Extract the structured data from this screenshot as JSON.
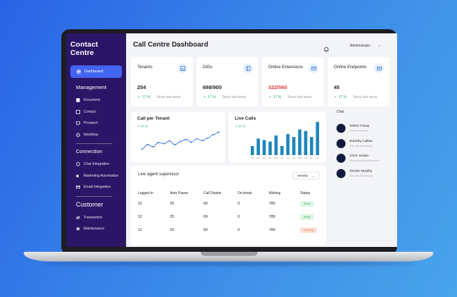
{
  "sidebar": {
    "brand": "Contact Centre",
    "dashboard": "Dashboard",
    "sections": {
      "management": "Management",
      "connection": "Connection",
      "customer": "Customer"
    },
    "management_items": [
      "Document",
      "Contact",
      "Prospect",
      "Workflow"
    ],
    "connection_items": [
      "Chat Integration",
      "Marketing Automation",
      "Email Integration"
    ],
    "customer_items": [
      "Transaction",
      "Maintenance"
    ]
  },
  "header": {
    "title": "Call Centre Dashboard",
    "user": "Administrator"
  },
  "cards": [
    {
      "title": "Tenants",
      "value": "254",
      "trend": "17 %",
      "since": "Since last week",
      "icon": "image-icon",
      "value_color": "#222222"
    },
    {
      "title": "DIDs",
      "value": "698/900",
      "trend": "17 %",
      "since": "Since last week",
      "icon": "book-icon",
      "value_color": "#222222"
    },
    {
      "title": "Online Extensions",
      "value": "322/560",
      "trend": "17 %",
      "since": "Since last week",
      "icon": "mail-icon",
      "value_color": "#e2383e"
    },
    {
      "title": "Online Endpoints",
      "value": "45",
      "trend": "17 %",
      "since": "Since last week",
      "icon": "mail-icon",
      "value_color": "#222222"
    }
  ],
  "charts": {
    "tenant": {
      "title": "Call per Tenant",
      "trend": "17 %"
    },
    "live": {
      "title": "Live Calls",
      "trend": "17 %"
    }
  },
  "chart_data": [
    {
      "type": "line",
      "title": "Call per Tenant",
      "values": [
        3,
        5,
        4,
        6,
        5.5,
        6.8,
        5,
        6.5,
        7.5,
        6.2,
        7.8,
        7,
        8.2,
        9.8,
        11
      ],
      "ylim": [
        0,
        12
      ]
    },
    {
      "type": "bar",
      "title": "Live Calls",
      "categories": [
        "Jan",
        "Feb",
        "Mar",
        "Apr",
        "May",
        "Jun",
        "Jul",
        "Aug",
        "Sep",
        "Oct",
        "Nov",
        "Dec"
      ],
      "values": [
        3,
        5.5,
        5,
        4.5,
        6.5,
        3,
        7,
        6,
        8.5,
        8,
        6,
        11
      ],
      "ylim": [
        0,
        12
      ]
    }
  ],
  "agent": {
    "title": "Live agent supervisor",
    "period": "Weekly",
    "columns": [
      "Logged in",
      "Auto Pause",
      "Call Disabe",
      "On-break",
      "Waiting",
      "Status"
    ],
    "rows": [
      {
        "logged": "12",
        "pause": "25",
        "disable": "69",
        "break": "0",
        "waiting": "789",
        "status": "Send",
        "status_type": "green"
      },
      {
        "logged": "12",
        "pause": "25",
        "disable": "69",
        "break": "0",
        "waiting": "789",
        "status": "Send",
        "status_type": "green"
      },
      {
        "logged": "12",
        "pause": "25",
        "disable": "69",
        "break": "0",
        "waiting": "789",
        "status": "Pending",
        "status_type": "red"
      }
    ]
  },
  "chat": {
    "title": "Chat",
    "items": [
      {
        "name": "Debra Young",
        "msg": "Asked for product"
      },
      {
        "name": "Dorothy Collins",
        "msg": "How was the meeting"
      },
      {
        "name": "Chris Jordan",
        "msg": "How employee performance"
      },
      {
        "name": "Denise Murphy",
        "msg": "How was the meeting"
      }
    ]
  }
}
